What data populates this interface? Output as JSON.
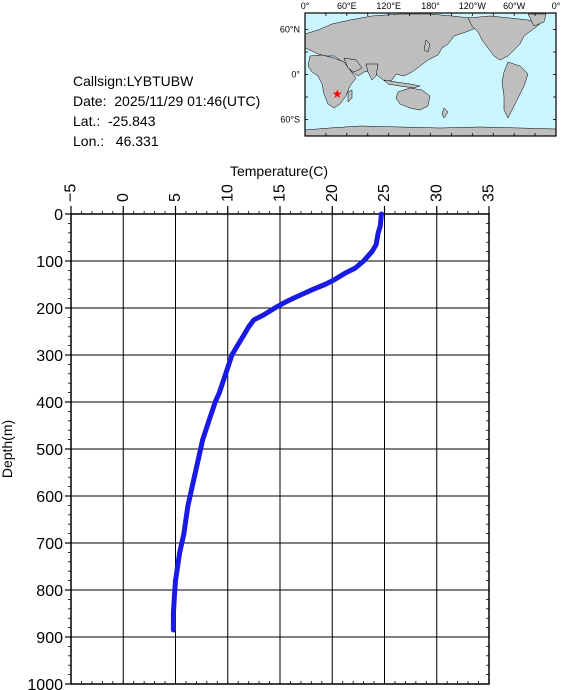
{
  "info": {
    "callsign": "Callsign:LYBTUBW",
    "date": "Date:  2025/11/29 01:46(UTC)",
    "lat": "Lat.:  -25.843",
    "lon": "Lon.:   46.331"
  },
  "map": {
    "lon_labels": [
      "0°",
      "60°E",
      "120°E",
      "180°",
      "120°W",
      "60°W",
      "0°"
    ],
    "lat_labels": [
      "60°N",
      "0°",
      "60°S"
    ],
    "marker": {
      "lon": 46.331,
      "lat": -25.843,
      "color": "#ff0000"
    },
    "ocean_color": "#cbf6ff",
    "land_color": "#bebebe"
  },
  "chart_data": {
    "type": "line",
    "title": "",
    "xlabel": "Temperature(C)",
    "ylabel": "Depth(m)",
    "xlim": [
      -5,
      35
    ],
    "ylim": [
      0,
      1000
    ],
    "y_inverted": true,
    "x_axis_position": "top",
    "grid": true,
    "x_ticks": [
      -5,
      0,
      5,
      10,
      15,
      20,
      25,
      30,
      35
    ],
    "y_ticks": [
      0,
      100,
      200,
      300,
      400,
      500,
      600,
      700,
      800,
      900,
      1000
    ],
    "line_color": "#1a1ae6",
    "series": [
      {
        "x": [
          24.7,
          24.6,
          24.4,
          24.2,
          23.8,
          23.4,
          23.0,
          22.2,
          21.3,
          20.2,
          19.3,
          18.2,
          17.2,
          16.2,
          15.3,
          14.5,
          13.4,
          12.5,
          12.0,
          11.6,
          11.2,
          10.8,
          10.4,
          10.1,
          9.8,
          9.5,
          9.2,
          8.8,
          8.5,
          8.2,
          7.9,
          7.6,
          7.4,
          7.2,
          7.0,
          6.8,
          6.6,
          6.4,
          6.2,
          6.0,
          5.8,
          5.6,
          5.4,
          5.2,
          5.0,
          4.9,
          4.8,
          4.8
        ],
        "y": [
          0,
          25,
          40,
          65,
          80,
          90,
          100,
          115,
          125,
          140,
          150,
          160,
          170,
          180,
          190,
          200,
          215,
          225,
          240,
          255,
          270,
          285,
          300,
          320,
          340,
          360,
          380,
          400,
          420,
          440,
          460,
          480,
          500,
          520,
          540,
          560,
          580,
          600,
          620,
          650,
          680,
          700,
          720,
          750,
          780,
          810,
          850,
          885
        ]
      }
    ]
  }
}
